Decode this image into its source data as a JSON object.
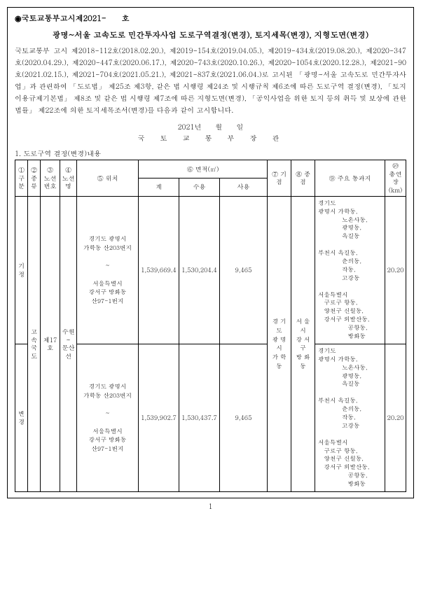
{
  "notice_number": "◉국토교통부고시제2021-　　호",
  "main_title": "광명~서울 고속도로 민간투자사업 도로구역결정(변경), 토지세목(변경), 지형도면(변경)",
  "body_text": "국토교통부 고시 제2018-112호(2018.02.20.), 제2019-154호(2019.04.05.), 제2019-434호(2019.08.20.), 제2020-347호(2020.04.29.), 제2020-447호(2020.06.17.), 제2020-743호(2020.10.26.), 제2020-1054호(2020.12.28.), 제2021-90호(2021.02.15.), 제2021-704호(2021.05.21.), 제2021-837호(2021.06.04.)로 고시된 「광명~서울 고속도로 민간투자사업」과 관련하여 「도로법」 제25조 제3항, 같은 법 시행령 제24조 및 시행규칙 제6조에 따른 도로구역 결정(변경), 「토지이용규제기본법」 제8조 및 같은 법 시행령 제7조에 따른 지형도면(변경), 「공익사업을 위한 토지 등의 취득 및 보상에 관한 법률」 제22조에 의한 토지세목조서(변경)를 다음과 같이 고시합니다.",
  "date_line": "2021년　　월　　일",
  "minister": "국　토　교　통　부　장　관",
  "section_head": "1. 도로구역 결정(변경)내용",
  "headers": {
    "h1": "①\n구분",
    "h2": "②\n종류",
    "h3": "③\n노선\n번호",
    "h4": "④\n노선\n명",
    "h5": "⑤ 위치",
    "h6": "⑥ 면적(㎡)",
    "h6a": "계",
    "h6b": "수용",
    "h6c": "사용",
    "h7": "⑦ 기점",
    "h8": "⑧ 종점",
    "h9": "⑨ 주요 통과지",
    "h10": "⑩\n총연장\n(km)"
  },
  "row_common": {
    "kind": "고속\n국도",
    "route_no": "제17호",
    "route_name": "수원\n~\n문산선",
    "start": "경 기 도\n광 명 시\n가 학 동",
    "end": "서 울 시\n강 서 구\n방 화 동"
  },
  "rows": [
    {
      "gubun": "기정",
      "location": "경기도 광명시\n가학동 산203번지\n\n~\n\n서울특별시\n강서구 방화동\n산97-1번지",
      "area_total": "1,539,669.4",
      "area_take": "1,530,204.4",
      "area_use": "9,465",
      "pass": "경기도\n광명시 가학동,\n　　　　노온사동,\n　　　　광명동,\n　　　　옥길동\n\n부천시 옥길동,\n　　　　춘의동,\n　　　　작동,\n　　　　고강동\n\n서울특별시\n　구로구 항동,\n　양천구 신월동,\n　강서구 외발산동,\n　　　　　공항동,\n　　　　　방화동",
      "length": "20.20"
    },
    {
      "gubun": "변경",
      "location": "경기도 광명시\n가학동 산203번지\n\n~\n\n서울특별시\n강서구 방화동\n산97-1번지",
      "area_total": "1,539,902.7",
      "area_take": "1,530,437.7",
      "area_use": "9,465",
      "pass": "경기도\n광명시 가학동,\n　　　　노온사동,\n　　　　광명동,\n　　　　옥길동\n\n부천시 옥길동,\n　　　　춘의동,\n　　　　작동,\n　　　　고강동\n\n서울특별시\n　구로구 항동,\n　양천구 신월동,\n　강서구 외발산동,\n　　　　　공항동,\n　　　　　방화동",
      "length": "20.20"
    }
  ],
  "page_num": "1"
}
